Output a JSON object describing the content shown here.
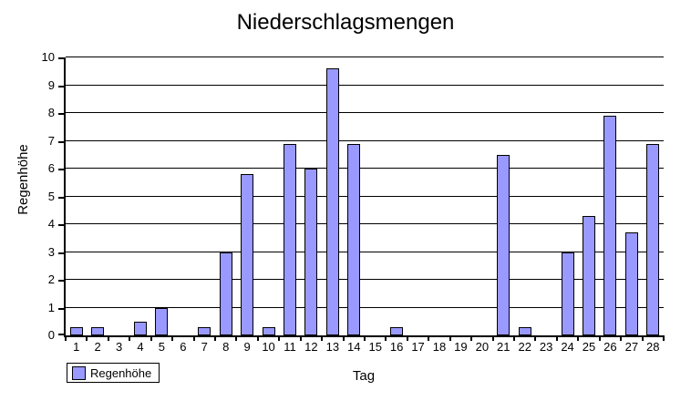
{
  "colors": {
    "bar_fill": "#9999FF",
    "bar_border": "#000000",
    "grid": "#000000",
    "background": "#FFFFFF",
    "text": "#000000"
  },
  "legend": {
    "label": "Regenhöhe"
  },
  "chart_data": {
    "type": "bar",
    "title": "Niederschlagsmengen",
    "xlabel": "Tag",
    "ylabel": "Regenhöhe",
    "categories": [
      "1",
      "2",
      "3",
      "4",
      "5",
      "6",
      "7",
      "8",
      "9",
      "10",
      "11",
      "12",
      "13",
      "14",
      "15",
      "16",
      "17",
      "18",
      "19",
      "20",
      "21",
      "22",
      "23",
      "24",
      "25",
      "26",
      "27",
      "28"
    ],
    "values": [
      0.3,
      0.3,
      0,
      0.5,
      1,
      0,
      0.3,
      3,
      5.8,
      0.3,
      6.9,
      6,
      9.6,
      6.9,
      0,
      0.3,
      0,
      0,
      0,
      0,
      6.5,
      0.3,
      0,
      3,
      4.3,
      7.9,
      3.7,
      6.9
    ],
    "ylim": [
      0,
      10
    ],
    "ytick_step": 1,
    "grid": true,
    "legend_position": "bottom-left",
    "legend_entries": [
      "Regenhöhe"
    ]
  }
}
